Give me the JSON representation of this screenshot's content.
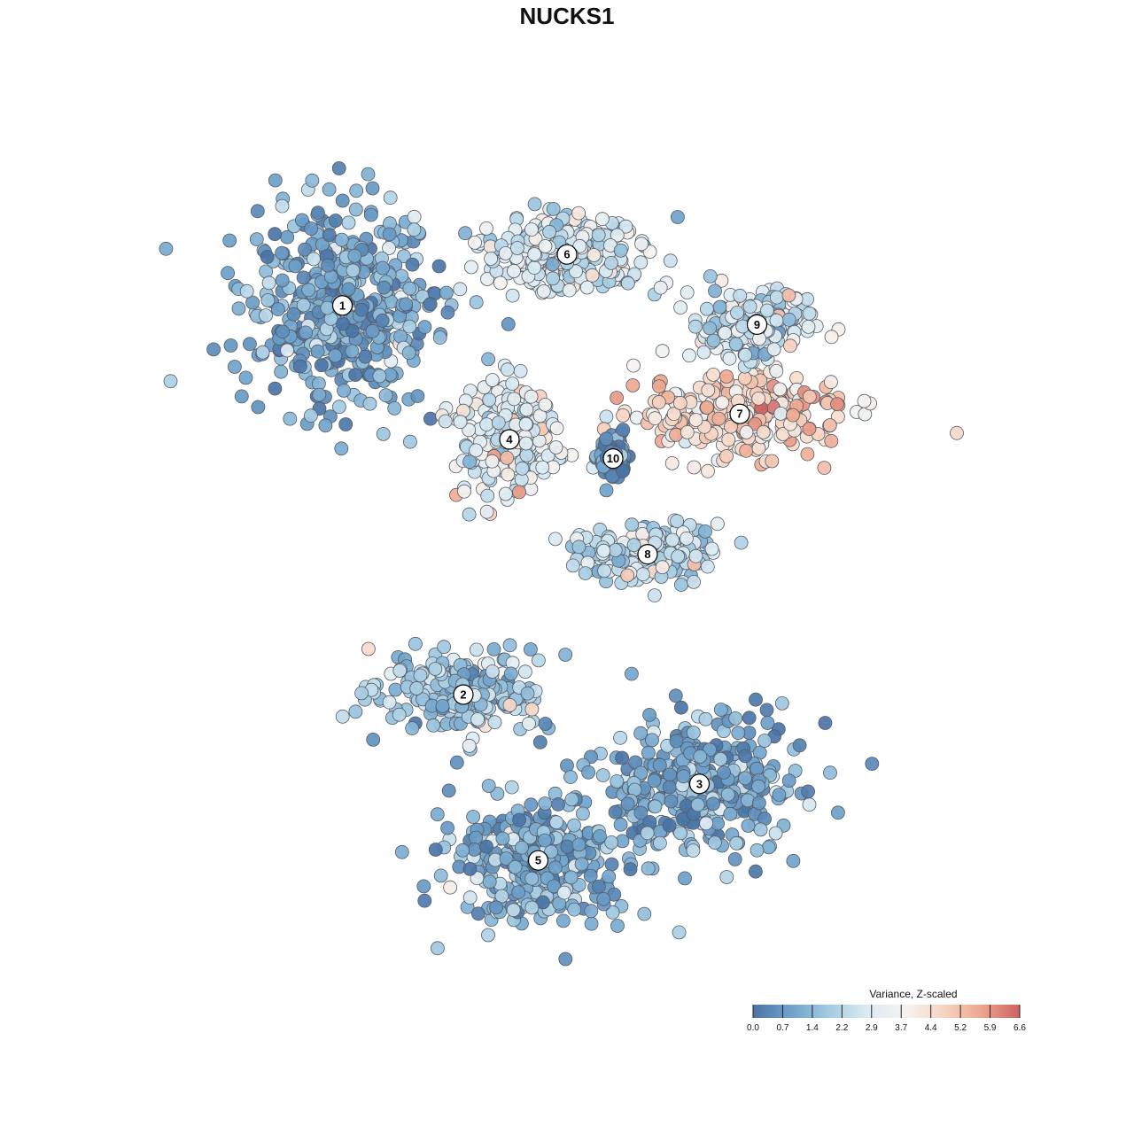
{
  "chart_data": {
    "type": "scatter",
    "title": "NUCKS1",
    "xlabel": "",
    "ylabel": "",
    "grid": false,
    "legend_placement": "bottom-right",
    "colorbar": {
      "title": "Variance, Z-scaled",
      "range": [
        0.0,
        6.6
      ],
      "ticks": [
        "0.0",
        "0.7",
        "1.4",
        "2.2",
        "2.9",
        "3.7",
        "4.4",
        "5.2",
        "5.9",
        "6.6"
      ],
      "colors": [
        "#4a74a6",
        "#6fa3cc",
        "#a3cbe2",
        "#dcebf3",
        "#f5f3f0",
        "#f7d4c2",
        "#eea58c",
        "#d05f62"
      ]
    },
    "clusters": [
      {
        "label": "1",
        "x": -3.9,
        "y": 4.1,
        "spread_x": 1.6,
        "spread_y": 1.4,
        "mean_value": 1.0
      },
      {
        "label": "2",
        "x": -1.8,
        "y": -2.0,
        "spread_x": 1.3,
        "spread_y": 0.6,
        "mean_value": 1.8
      },
      {
        "label": "3",
        "x": 2.3,
        "y": -3.4,
        "spread_x": 1.6,
        "spread_y": 1.0,
        "mean_value": 1.0
      },
      {
        "label": "4",
        "x": -1.0,
        "y": 2.0,
        "spread_x": 0.8,
        "spread_y": 0.8,
        "mean_value": 3.0
      },
      {
        "label": "5",
        "x": -0.5,
        "y": -4.6,
        "spread_x": 1.4,
        "spread_y": 0.9,
        "mean_value": 1.2
      },
      {
        "label": "6",
        "x": 0.0,
        "y": 4.9,
        "spread_x": 1.4,
        "spread_y": 0.5,
        "mean_value": 2.7
      },
      {
        "label": "7",
        "x": 3.0,
        "y": 2.4,
        "spread_x": 1.6,
        "spread_y": 0.6,
        "mean_value": 4.6
      },
      {
        "label": "8",
        "x": 1.4,
        "y": 0.2,
        "spread_x": 1.1,
        "spread_y": 0.4,
        "mean_value": 2.4
      },
      {
        "label": "9",
        "x": 3.3,
        "y": 3.8,
        "spread_x": 0.9,
        "spread_y": 0.5,
        "mean_value": 2.6
      },
      {
        "label": "10",
        "x": 0.8,
        "y": 1.7,
        "spread_x": 0.2,
        "spread_y": 0.3,
        "mean_value": 0.3
      }
    ]
  }
}
